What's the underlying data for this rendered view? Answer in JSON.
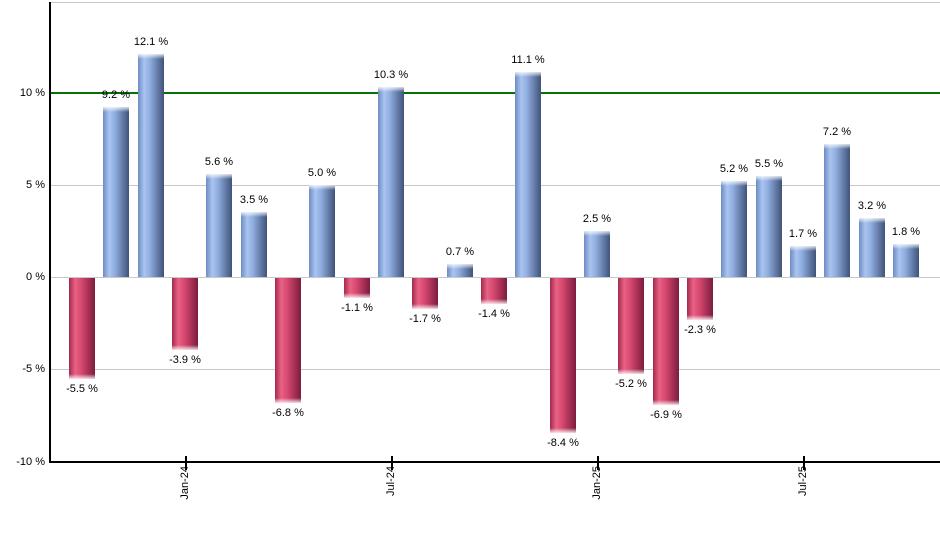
{
  "chart_data": {
    "type": "bar",
    "values": [
      -5.5,
      9.2,
      12.1,
      -3.9,
      5.6,
      3.5,
      -6.8,
      5.0,
      -1.1,
      10.3,
      -1.7,
      0.7,
      -1.4,
      11.1,
      -8.4,
      2.5,
      -5.2,
      -6.9,
      -2.3,
      5.2,
      5.5,
      1.7,
      7.2,
      3.2,
      1.8
    ],
    "bar_labels": [
      "-5.5 %",
      "9.2 %",
      "12.1 %",
      "-3.9 %",
      "5.6 %",
      "3.5 %",
      "-6.8 %",
      "5.0 %",
      "-1.1 %",
      "10.3 %",
      "-1.7 %",
      "0.7 %",
      "-1.4 %",
      "11.1 %",
      "-8.4 %",
      "2.5 %",
      "-5.2 %",
      "-6.9 %",
      "-2.3 %",
      "5.2 %",
      "5.5 %",
      "1.7 %",
      "7.2 %",
      "3.2 %",
      "1.8 %"
    ],
    "x_ticks": [
      {
        "label": "Jan-24",
        "bar_index": 3
      },
      {
        "label": "Jul-24",
        "bar_index": 9
      },
      {
        "label": "Jan-25",
        "bar_index": 15
      },
      {
        "label": "Jul-25",
        "bar_index": 21
      }
    ],
    "y_ticks": [
      {
        "label": "10 %",
        "value": 10
      },
      {
        "label": "5 %",
        "value": 5
      },
      {
        "label": "0 %",
        "value": 0
      },
      {
        "label": "-5 %",
        "value": -5
      },
      {
        "label": "-10 %",
        "value": -10
      }
    ],
    "ylim": [
      -10,
      14.8
    ],
    "grid": true,
    "legend": "none",
    "reference_line": {
      "value": 10
    },
    "colors": {
      "positive_bar_edge": "#6d8cc4",
      "positive_bar_light": "#a9c4f0",
      "positive_bar_mid": "#8fadde",
      "positive_bar_dark": "#3f537a",
      "negative_bar_edge": "#a3294d",
      "negative_bar_light": "#e86285",
      "negative_bar_mid": "#d94a71",
      "negative_bar_dark": "#7c1c3e",
      "reference_line": "#067106",
      "gridline": "#c8c8c8",
      "axis": "#000000",
      "label_text": "#000000",
      "background": "#ffffff"
    }
  }
}
